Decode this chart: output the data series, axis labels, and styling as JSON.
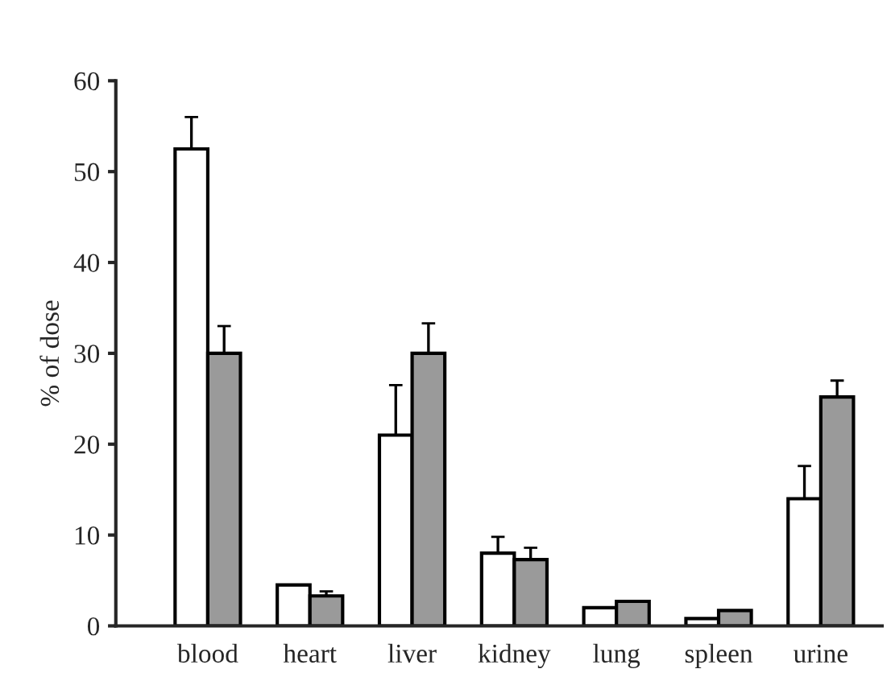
{
  "chart_data": {
    "type": "bar",
    "ylabel": "% of dose",
    "categories": [
      "blood",
      "heart",
      "liver",
      "kidney",
      "lung",
      "spleen",
      "urine"
    ],
    "series": [
      {
        "color": "#ffffff",
        "values": [
          52.5,
          4.5,
          21,
          8,
          2,
          0.8,
          14
        ],
        "errors": [
          [
            52.5,
            56
          ],
          null,
          [
            21,
            26.5
          ],
          [
            8,
            9.8
          ],
          null,
          null,
          [
            14,
            17.6
          ]
        ]
      },
      {
        "color": "#9a9a9a",
        "values": [
          30,
          3.3,
          30,
          7.3,
          2.7,
          1.7,
          25.2
        ],
        "errors": [
          [
            30,
            33
          ],
          [
            3.3,
            3.8
          ],
          [
            30,
            33.3
          ],
          [
            7.3,
            8.6
          ],
          null,
          null,
          [
            25.2,
            27
          ]
        ]
      }
    ],
    "ylim": [
      0,
      60
    ],
    "yticks": [
      0,
      10,
      20,
      30,
      40,
      50,
      60
    ],
    "grid": false,
    "legend": false
  }
}
